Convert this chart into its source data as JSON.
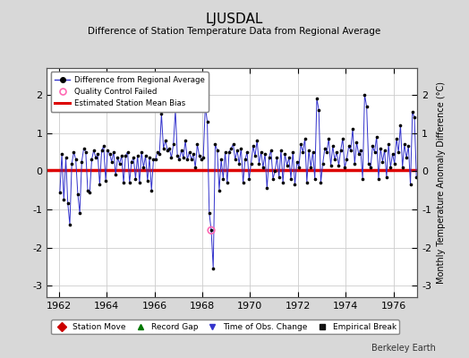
{
  "title": "LJUSDAL",
  "subtitle": "Difference of Station Temperature Data from Regional Average",
  "ylabel": "Monthly Temperature Anomaly Difference (°C)",
  "xlim": [
    1961.5,
    1977.0
  ],
  "ylim": [
    -3.3,
    2.7
  ],
  "yticks": [
    -3,
    -2,
    -1,
    0,
    1,
    2
  ],
  "xticks": [
    1962,
    1964,
    1966,
    1968,
    1970,
    1972,
    1974,
    1976
  ],
  "mean_bias": 0.02,
  "bg_color": "#d8d8d8",
  "plot_bg_color": "#ffffff",
  "line_color": "#3333cc",
  "marker_color": "#000000",
  "bias_color": "#dd0000",
  "legend_items": [
    {
      "label": "Difference from Regional Average",
      "color": "#3333cc",
      "marker": "o",
      "linestyle": "-"
    },
    {
      "label": "Quality Control Failed",
      "color": "#ff69b4",
      "marker": "o",
      "linestyle": "none"
    },
    {
      "label": "Estimated Station Mean Bias",
      "color": "#dd0000",
      "marker": "",
      "linestyle": "-"
    }
  ],
  "bottom_legend": [
    {
      "label": "Station Move",
      "color": "#cc0000",
      "marker": "D"
    },
    {
      "label": "Record Gap",
      "color": "#007700",
      "marker": "^"
    },
    {
      "label": "Time of Obs. Change",
      "color": "#3333cc",
      "marker": "v"
    },
    {
      "label": "Empirical Break",
      "color": "#111111",
      "marker": "s"
    }
  ],
  "watermark": "Berkeley Earth",
  "qc_x": [
    1968.375
  ],
  "qc_y": [
    -1.55
  ],
  "data_x": [
    1962.042,
    1962.125,
    1962.208,
    1962.292,
    1962.375,
    1962.458,
    1962.542,
    1962.625,
    1962.708,
    1962.792,
    1962.875,
    1962.958,
    1963.042,
    1963.125,
    1963.208,
    1963.292,
    1963.375,
    1963.458,
    1963.542,
    1963.625,
    1963.708,
    1963.792,
    1963.875,
    1963.958,
    1964.042,
    1964.125,
    1964.208,
    1964.292,
    1964.375,
    1964.458,
    1964.542,
    1964.625,
    1964.708,
    1964.792,
    1964.875,
    1964.958,
    1965.042,
    1965.125,
    1965.208,
    1965.292,
    1965.375,
    1965.458,
    1965.542,
    1965.625,
    1965.708,
    1965.792,
    1965.875,
    1965.958,
    1966.042,
    1966.125,
    1966.208,
    1966.292,
    1966.375,
    1966.458,
    1966.542,
    1966.625,
    1966.708,
    1966.792,
    1966.875,
    1966.958,
    1967.042,
    1967.125,
    1967.208,
    1967.292,
    1967.375,
    1967.458,
    1967.542,
    1967.625,
    1967.708,
    1967.792,
    1967.875,
    1967.958,
    1968.042,
    1968.125,
    1968.208,
    1968.292,
    1968.375,
    1968.458,
    1968.542,
    1968.625,
    1968.708,
    1968.792,
    1968.875,
    1968.958,
    1969.042,
    1969.125,
    1969.208,
    1969.292,
    1969.375,
    1969.458,
    1969.542,
    1969.625,
    1969.708,
    1969.792,
    1969.875,
    1969.958,
    1970.042,
    1970.125,
    1970.208,
    1970.292,
    1970.375,
    1970.458,
    1970.542,
    1970.625,
    1970.708,
    1970.792,
    1970.875,
    1970.958,
    1971.042,
    1971.125,
    1971.208,
    1971.292,
    1971.375,
    1971.458,
    1971.542,
    1971.625,
    1971.708,
    1971.792,
    1971.875,
    1971.958,
    1972.042,
    1972.125,
    1972.208,
    1972.292,
    1972.375,
    1972.458,
    1972.542,
    1972.625,
    1972.708,
    1972.792,
    1972.875,
    1972.958,
    1973.042,
    1973.125,
    1973.208,
    1973.292,
    1973.375,
    1973.458,
    1973.542,
    1973.625,
    1973.708,
    1973.792,
    1973.875,
    1973.958,
    1974.042,
    1974.125,
    1974.208,
    1974.292,
    1974.375,
    1974.458,
    1974.542,
    1974.625,
    1974.708,
    1974.792,
    1974.875,
    1974.958,
    1975.042,
    1975.125,
    1975.208,
    1975.292,
    1975.375,
    1975.458,
    1975.542,
    1975.625,
    1975.708,
    1975.792,
    1975.875,
    1975.958,
    1976.042,
    1976.125,
    1976.208,
    1976.292,
    1976.375,
    1976.458,
    1976.542,
    1976.625,
    1976.708,
    1976.792,
    1976.875,
    1976.958
  ],
  "data_y": [
    -0.55,
    0.45,
    -0.75,
    0.35,
    -0.85,
    -1.4,
    0.2,
    0.5,
    0.3,
    -0.6,
    -1.1,
    0.25,
    0.6,
    0.5,
    -0.5,
    -0.55,
    0.3,
    0.55,
    0.35,
    0.45,
    -0.35,
    0.55,
    0.65,
    -0.25,
    0.55,
    0.45,
    0.25,
    0.5,
    -0.1,
    0.35,
    0.2,
    0.4,
    -0.3,
    0.4,
    0.5,
    -0.3,
    0.25,
    0.35,
    -0.2,
    0.4,
    -0.3,
    0.5,
    0.1,
    0.4,
    -0.25,
    0.35,
    -0.5,
    0.3,
    0.3,
    0.5,
    0.45,
    1.5,
    0.6,
    0.8,
    0.55,
    0.6,
    0.35,
    0.7,
    1.6,
    0.4,
    0.3,
    0.55,
    0.35,
    0.8,
    0.3,
    0.5,
    0.3,
    0.45,
    0.1,
    0.7,
    0.4,
    0.3,
    0.35,
    1.7,
    1.3,
    -1.1,
    -1.55,
    -2.55,
    0.7,
    0.55,
    -0.5,
    0.3,
    -0.2,
    0.5,
    -0.3,
    0.5,
    0.6,
    0.7,
    0.3,
    0.55,
    0.2,
    0.6,
    -0.3,
    0.3,
    0.5,
    -0.2,
    0.2,
    0.65,
    0.4,
    0.8,
    0.2,
    0.5,
    0.1,
    0.45,
    -0.45,
    0.35,
    0.55,
    -0.2,
    0.0,
    0.35,
    -0.15,
    0.55,
    -0.3,
    0.45,
    0.15,
    0.35,
    -0.2,
    0.5,
    -0.35,
    0.25,
    0.1,
    0.7,
    0.5,
    0.85,
    -0.3,
    0.55,
    0.1,
    0.5,
    -0.2,
    1.9,
    1.6,
    -0.3,
    0.2,
    0.6,
    0.5,
    0.85,
    0.15,
    0.65,
    0.3,
    0.5,
    0.15,
    0.55,
    0.85,
    0.1,
    0.3,
    0.65,
    0.55,
    1.1,
    0.2,
    0.75,
    0.45,
    0.55,
    -0.2,
    2.0,
    1.7,
    0.2,
    0.1,
    0.65,
    0.5,
    0.9,
    -0.2,
    0.6,
    0.25,
    0.55,
    -0.15,
    0.7,
    0.1,
    0.45,
    0.2,
    0.85,
    0.5,
    1.2,
    0.1,
    0.7,
    0.35,
    0.65,
    -0.35,
    1.55,
    1.4,
    -0.15
  ]
}
